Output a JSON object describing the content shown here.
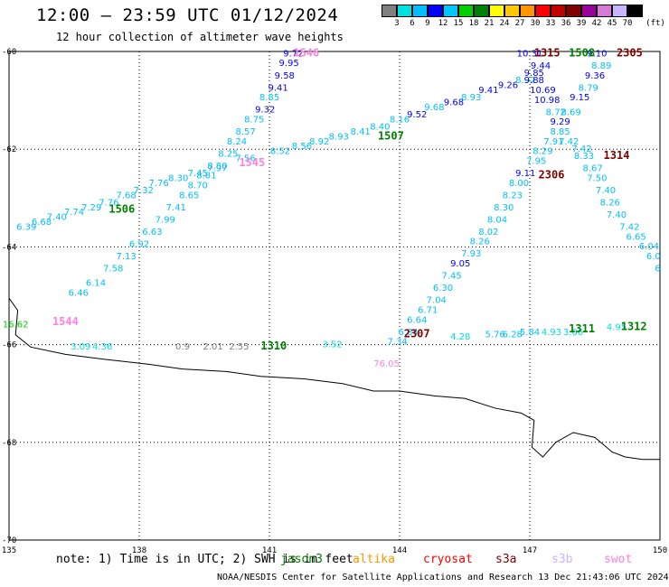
{
  "header": {
    "title": "12:00 – 23:59 UTC 01/12/2024",
    "subtitle": "12 hour collection of altimeter wave heights"
  },
  "colorbar": {
    "unit": "(ft)",
    "colors": [
      "#808080",
      "#00e0e0",
      "#00bfff",
      "#0000ff",
      "#00c8ff",
      "#00d000",
      "#008000",
      "#ffff00",
      "#ffc800",
      "#ff9600",
      "#ff0000",
      "#c00000",
      "#800000",
      "#9b009b",
      "#d77ad7",
      "#c8b4ff",
      "#000000"
    ],
    "labels": [
      "3",
      "6",
      "9",
      "12",
      "15",
      "18",
      "21",
      "24",
      "27",
      "30",
      "33",
      "36",
      "39",
      "42",
      "45",
      "70"
    ]
  },
  "axes": {
    "x_ticks": [
      "135",
      "138",
      "141",
      "144",
      "147",
      "150"
    ],
    "y_ticks": [
      "-60",
      "-62",
      "-64",
      "-66",
      "-68",
      "-70"
    ]
  },
  "annotations": {
    "note": "note:  1) Time is in UTC; 2) SWH is in feet",
    "credit": "NOAA/NESDIS Center for Satellite Applications and Research    13 Dec 21:43:06 UTC 2024"
  },
  "legend": [
    {
      "name": "jason3",
      "color": "#008000"
    },
    {
      "name": "altika",
      "color": "#ff9600"
    },
    {
      "name": "cryosat",
      "color": "#ff0000"
    },
    {
      "name": "s3a",
      "color": "#800000"
    },
    {
      "name": "s3b",
      "color": "#c8b4ff"
    },
    {
      "name": "swot",
      "color": "#ff80e0"
    }
  ],
  "track_labels": [
    {
      "text": "1546",
      "color": "#ff80e0",
      "lon": 141.85,
      "lat": -60.1
    },
    {
      "text": "1507",
      "color": "#008000",
      "lon": 143.8,
      "lat": -61.8
    },
    {
      "text": "1315",
      "color": "#800000",
      "lon": 147.4,
      "lat": -60.1
    },
    {
      "text": "1508",
      "color": "#008000",
      "lon": 148.2,
      "lat": -60.1
    },
    {
      "text": "2305",
      "color": "#800000",
      "lon": 149.3,
      "lat": -60.1
    },
    {
      "text": "1545",
      "color": "#ff80e0",
      "lon": 140.6,
      "lat": -62.35
    },
    {
      "text": "2306",
      "color": "#800000",
      "lon": 147.5,
      "lat": -62.6
    },
    {
      "text": "1314",
      "color": "#800000",
      "lon": 149.0,
      "lat": -62.2
    },
    {
      "text": "1506",
      "color": "#008000",
      "lon": 137.6,
      "lat": -63.3
    },
    {
      "text": "1544",
      "color": "#ff80e0",
      "lon": 136.3,
      "lat": -65.6
    },
    {
      "text": "2307",
      "color": "#800000",
      "lon": 144.4,
      "lat": -65.85
    },
    {
      "text": "1310",
      "color": "#008000",
      "lon": 141.1,
      "lat": -66.1
    },
    {
      "text": "1311",
      "color": "#008000",
      "lon": 148.2,
      "lat": -65.75
    },
    {
      "text": "1312",
      "color": "#008000",
      "lon": 149.4,
      "lat": -65.7
    }
  ],
  "wave_labels": [
    {
      "text": "9.72",
      "color": "#0000ff",
      "lon": 141.55,
      "lat": -60.1
    },
    {
      "text": "9.95",
      "color": "#0000ff",
      "lon": 141.45,
      "lat": -60.3
    },
    {
      "text": "9.58",
      "color": "#0000ff",
      "lon": 141.35,
      "lat": -60.55
    },
    {
      "text": "9.41",
      "color": "#0000ff",
      "lon": 141.2,
      "lat": -60.8
    },
    {
      "text": "8.85",
      "color": "#00bfff",
      "lon": 141.0,
      "lat": -61.0
    },
    {
      "text": "9.32",
      "color": "#0000ff",
      "lon": 140.9,
      "lat": -61.25
    },
    {
      "text": "8.75",
      "color": "#00bfff",
      "lon": 140.65,
      "lat": -61.45
    },
    {
      "text": "8.57",
      "color": "#00bfff",
      "lon": 140.45,
      "lat": -61.7
    },
    {
      "text": "8.24",
      "color": "#00bfff",
      "lon": 140.25,
      "lat": -61.9
    },
    {
      "text": "8.25",
      "color": "#00bfff",
      "lon": 140.05,
      "lat": -62.15
    },
    {
      "text": "8.80",
      "color": "#00bfff",
      "lon": 139.8,
      "lat": -62.4
    },
    {
      "text": "8.81",
      "color": "#00bfff",
      "lon": 139.55,
      "lat": -62.6
    },
    {
      "text": "8.70",
      "color": "#00bfff",
      "lon": 139.35,
      "lat": -62.8
    },
    {
      "text": "8.65",
      "color": "#00bfff",
      "lon": 139.15,
      "lat": -63.0
    },
    {
      "text": "7.41",
      "color": "#00bfff",
      "lon": 138.85,
      "lat": -63.25
    },
    {
      "text": "7.99",
      "color": "#00bfff",
      "lon": 138.6,
      "lat": -63.5
    },
    {
      "text": "6.63",
      "color": "#00bfff",
      "lon": 138.3,
      "lat": -63.75
    },
    {
      "text": "6.92",
      "color": "#00bfff",
      "lon": 138.0,
      "lat": -64.0
    },
    {
      "text": "7.13",
      "color": "#00bfff",
      "lon": 137.7,
      "lat": -64.25
    },
    {
      "text": "7.58",
      "color": "#00bfff",
      "lon": 137.4,
      "lat": -64.5
    },
    {
      "text": "6.14",
      "color": "#00bfff",
      "lon": 137.0,
      "lat": -64.8
    },
    {
      "text": "6.46",
      "color": "#00bfff",
      "lon": 136.6,
      "lat": -65.0
    },
    {
      "text": "6.39",
      "color": "#00bfff",
      "lon": 135.4,
      "lat": -63.65
    },
    {
      "text": "6.68",
      "color": "#00bfff",
      "lon": 135.75,
      "lat": -63.55
    },
    {
      "text": "7.40",
      "color": "#00bfff",
      "lon": 136.1,
      "lat": -63.45
    },
    {
      "text": "7.74",
      "color": "#00bfff",
      "lon": 136.5,
      "lat": -63.35
    },
    {
      "text": "7.29",
      "color": "#00bfff",
      "lon": 136.9,
      "lat": -63.25
    },
    {
      "text": "7.76",
      "color": "#00bfff",
      "lon": 137.3,
      "lat": -63.15
    },
    {
      "text": "7.68",
      "color": "#00bfff",
      "lon": 137.7,
      "lat": -63.0
    },
    {
      "text": "7.32",
      "color": "#00bfff",
      "lon": 138.1,
      "lat": -62.9
    },
    {
      "text": "7.76",
      "color": "#00bfff",
      "lon": 138.45,
      "lat": -62.75
    },
    {
      "text": "8.30",
      "color": "#00bfff",
      "lon": 138.9,
      "lat": -62.65
    },
    {
      "text": "7.45",
      "color": "#00bfff",
      "lon": 139.35,
      "lat": -62.55
    },
    {
      "text": "7.97",
      "color": "#00bfff",
      "lon": 139.8,
      "lat": -62.45
    },
    {
      "text": "7.56",
      "color": "#00bfff",
      "lon": 140.45,
      "lat": -62.25
    },
    {
      "text": "8.52",
      "color": "#00bfff",
      "lon": 141.25,
      "lat": -62.1
    },
    {
      "text": "8.56",
      "color": "#00bfff",
      "lon": 141.75,
      "lat": -62.0
    },
    {
      "text": "8.92",
      "color": "#00bfff",
      "lon": 142.15,
      "lat": -61.9
    },
    {
      "text": "8.93",
      "color": "#00bfff",
      "lon": 142.6,
      "lat": -61.8
    },
    {
      "text": "8.41",
      "color": "#00bfff",
      "lon": 143.1,
      "lat": -61.7
    },
    {
      "text": "8.40",
      "color": "#00bfff",
      "lon": 143.55,
      "lat": -61.6
    },
    {
      "text": "8.16",
      "color": "#00bfff",
      "lon": 144.0,
      "lat": -61.45
    },
    {
      "text": "9.52",
      "color": "#0000ff",
      "lon": 144.4,
      "lat": -61.35
    },
    {
      "text": "9.68",
      "color": "#00bfff",
      "lon": 144.8,
      "lat": -61.2
    },
    {
      "text": "9.68",
      "color": "#0000ff",
      "lon": 145.25,
      "lat": -61.1
    },
    {
      "text": "8.93",
      "color": "#00bfff",
      "lon": 145.65,
      "lat": -61.0
    },
    {
      "text": "9.41",
      "color": "#0000ff",
      "lon": 146.05,
      "lat": -60.85
    },
    {
      "text": "9.26",
      "color": "#0000ff",
      "lon": 146.5,
      "lat": -60.75
    },
    {
      "text": "8.92",
      "color": "#00bfff",
      "lon": 146.9,
      "lat": -60.65
    },
    {
      "text": "10.31",
      "color": "#0000ff",
      "lon": 147.0,
      "lat": -60.1
    },
    {
      "text": "9.44",
      "color": "#0000ff",
      "lon": 147.25,
      "lat": -60.35
    },
    {
      "text": "9.85",
      "color": "#0000ff",
      "lon": 147.1,
      "lat": -60.5
    },
    {
      "text": "9.88",
      "color": "#0000ff",
      "lon": 147.1,
      "lat": -60.65
    },
    {
      "text": "10.69",
      "color": "#0000ff",
      "lon": 147.3,
      "lat": -60.85
    },
    {
      "text": "10.98",
      "color": "#0000ff",
      "lon": 147.4,
      "lat": -61.05
    },
    {
      "text": "8.72",
      "color": "#00bfff",
      "lon": 147.6,
      "lat": -61.3
    },
    {
      "text": "9.29",
      "color": "#0000ff",
      "lon": 147.7,
      "lat": -61.5
    },
    {
      "text": "8.85",
      "color": "#00bfff",
      "lon": 147.7,
      "lat": -61.7
    },
    {
      "text": "7.91",
      "color": "#00bfff",
      "lon": 147.55,
      "lat": -61.9
    },
    {
      "text": "8.29",
      "color": "#00bfff",
      "lon": 147.3,
      "lat": -62.1
    },
    {
      "text": "7.95",
      "color": "#00bfff",
      "lon": 147.15,
      "lat": -62.3
    },
    {
      "text": "9.11",
      "color": "#0000ff",
      "lon": 146.9,
      "lat": -62.55
    },
    {
      "text": "8.00",
      "color": "#00bfff",
      "lon": 146.75,
      "lat": -62.75
    },
    {
      "text": "8.23",
      "color": "#00bfff",
      "lon": 146.6,
      "lat": -63.0
    },
    {
      "text": "8.30",
      "color": "#00bfff",
      "lon": 146.4,
      "lat": -63.25
    },
    {
      "text": "8.04",
      "color": "#00bfff",
      "lon": 146.25,
      "lat": -63.5
    },
    {
      "text": "8.02",
      "color": "#00bfff",
      "lon": 146.05,
      "lat": -63.75
    },
    {
      "text": "8.26",
      "color": "#00bfff",
      "lon": 145.85,
      "lat": -63.95
    },
    {
      "text": "7.93",
      "color": "#00bfff",
      "lon": 145.65,
      "lat": -64.2
    },
    {
      "text": "9.05",
      "color": "#0000ff",
      "lon": 145.4,
      "lat": -64.4
    },
    {
      "text": "7.45",
      "color": "#00bfff",
      "lon": 145.2,
      "lat": -64.65
    },
    {
      "text": "6.30",
      "color": "#00bfff",
      "lon": 145.0,
      "lat": -64.9
    },
    {
      "text": "7.04",
      "color": "#00bfff",
      "lon": 144.85,
      "lat": -65.15
    },
    {
      "text": "6.71",
      "color": "#00bfff",
      "lon": 144.65,
      "lat": -65.35
    },
    {
      "text": "6.64",
      "color": "#00bfff",
      "lon": 144.4,
      "lat": -65.55
    },
    {
      "text": "6.84",
      "color": "#00bfff",
      "lon": 144.2,
      "lat": -65.8
    },
    {
      "text": "7.34",
      "color": "#00bfff",
      "lon": 143.95,
      "lat": -66.0
    },
    {
      "text": "9.10",
      "color": "#0000ff",
      "lon": 148.55,
      "lat": -60.1
    },
    {
      "text": "8.89",
      "color": "#00bfff",
      "lon": 148.65,
      "lat": -60.35
    },
    {
      "text": "9.36",
      "color": "#0000ff",
      "lon": 148.5,
      "lat": -60.55
    },
    {
      "text": "8.79",
      "color": "#00bfff",
      "lon": 148.35,
      "lat": -60.8
    },
    {
      "text": "9.15",
      "color": "#0000ff",
      "lon": 148.15,
      "lat": -61.0
    },
    {
      "text": "8.69",
      "color": "#00bfff",
      "lon": 147.95,
      "lat": -61.3
    },
    {
      "text": "7.42",
      "color": "#00bfff",
      "lon": 147.9,
      "lat": -61.9
    },
    {
      "text": "7.42",
      "color": "#00bfff",
      "lon": 148.2,
      "lat": -62.05
    },
    {
      "text": "8.33",
      "color": "#00bfff",
      "lon": 148.25,
      "lat": -62.2
    },
    {
      "text": "8.67",
      "color": "#00bfff",
      "lon": 148.45,
      "lat": -62.45
    },
    {
      "text": "7.50",
      "color": "#00bfff",
      "lon": 148.55,
      "lat": -62.65
    },
    {
      "text": "7.40",
      "color": "#00bfff",
      "lon": 148.75,
      "lat": -62.9
    },
    {
      "text": "8.26",
      "color": "#00bfff",
      "lon": 148.85,
      "lat": -63.15
    },
    {
      "text": "7.40",
      "color": "#00bfff",
      "lon": 149.0,
      "lat": -63.4
    },
    {
      "text": "7.42",
      "color": "#00bfff",
      "lon": 149.3,
      "lat": -63.65
    },
    {
      "text": "6.65",
      "color": "#00bfff",
      "lon": 149.45,
      "lat": -63.85
    },
    {
      "text": "6.04",
      "color": "#00bfff",
      "lon": 149.75,
      "lat": -64.05
    },
    {
      "text": "6.0",
      "color": "#00bfff",
      "lon": 149.85,
      "lat": -64.25
    },
    {
      "text": "6",
      "color": "#00bfff",
      "lon": 149.95,
      "lat": -64.5
    },
    {
      "text": "16.62",
      "color": "#00d000",
      "lon": 135.15,
      "lat": -65.65
    },
    {
      "text": "3.09",
      "color": "#00e0e0",
      "lon": 136.65,
      "lat": -66.1
    },
    {
      "text": "4.36",
      "color": "#00e0e0",
      "lon": 137.15,
      "lat": -66.1
    },
    {
      "text": "0.9",
      "color": "#808080",
      "lon": 139.0,
      "lat": -66.1
    },
    {
      "text": "2.01",
      "color": "#808080",
      "lon": 139.7,
      "lat": -66.1
    },
    {
      "text": "2.55",
      "color": "#808080",
      "lon": 140.3,
      "lat": -66.1
    },
    {
      "text": "3.52",
      "color": "#00e0e0",
      "lon": 142.45,
      "lat": -66.05
    },
    {
      "text": "4.28",
      "color": "#00e0e0",
      "lon": 145.4,
      "lat": -65.9
    },
    {
      "text": "5.76",
      "color": "#00bfff",
      "lon": 146.2,
      "lat": -65.85
    },
    {
      "text": "6.28",
      "color": "#00bfff",
      "lon": 146.6,
      "lat": -65.85
    },
    {
      "text": "5.84",
      "color": "#00bfff",
      "lon": 147.0,
      "lat": -65.8
    },
    {
      "text": "4.93",
      "color": "#00e0e0",
      "lon": 147.5,
      "lat": -65.8
    },
    {
      "text": "3.66",
      "color": "#00e0e0",
      "lon": 148.0,
      "lat": -65.8
    },
    {
      "text": "4.95",
      "color": "#00e0e0",
      "lon": 149.0,
      "lat": -65.7
    },
    {
      "text": "76.05",
      "color": "#ff80e0",
      "lon": 143.7,
      "lat": -66.45
    }
  ]
}
